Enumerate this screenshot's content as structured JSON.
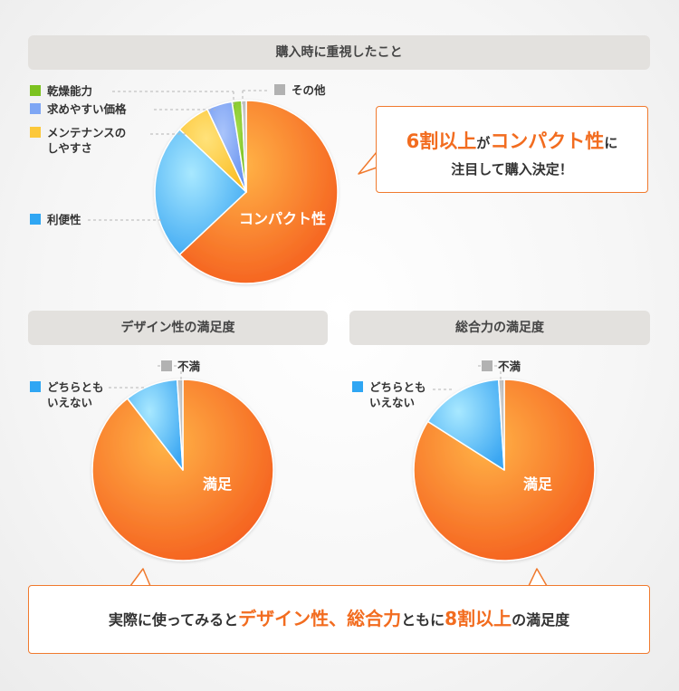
{
  "chart_data": [
    {
      "type": "pie",
      "title": "購入時に重視したこと",
      "slices": [
        {
          "label": "コンパクト性",
          "value": 63,
          "color": "#f7782a"
        },
        {
          "label": "利便性",
          "value": 24,
          "color": "#53b8f5"
        },
        {
          "label": "メンテナンスのしやすさ",
          "value": 6,
          "color": "#fcc83a"
        },
        {
          "label": "求めやすい価格",
          "value": 4.5,
          "color": "#7ea6f4"
        },
        {
          "label": "乾燥能力",
          "value": 1.7,
          "color": "#7cc21f"
        },
        {
          "label": "その他",
          "value": 0.8,
          "color": "#b2b2b2"
        }
      ]
    },
    {
      "type": "pie",
      "title": "デザイン性の満足度",
      "slices": [
        {
          "label": "満足",
          "value": 89.5,
          "color": "#f7782a"
        },
        {
          "label": "どちらとも いえない",
          "value": 9.5,
          "color": "#53b8f5"
        },
        {
          "label": "不満",
          "value": 1,
          "color": "#b2b2b2"
        }
      ]
    },
    {
      "type": "pie",
      "title": "総合力の満足度",
      "slices": [
        {
          "label": "満足",
          "value": 84,
          "color": "#f7782a"
        },
        {
          "label": "どちらとも いえない",
          "value": 15,
          "color": "#53b8f5"
        },
        {
          "label": "不満",
          "value": 1,
          "color": "#b2b2b2"
        }
      ]
    }
  ],
  "legend": {
    "kanso": "乾燥能力",
    "kakaku": "求めやすい価格",
    "maint1": "メンテナンスの",
    "maint2": "しやすさ",
    "ribensei": "利便性",
    "sonota": "その他",
    "dochira1": "どちらとも",
    "dochira2": "いえない",
    "fuman": "不満"
  },
  "pie_labels": {
    "compact": "コンパクト性",
    "manzoku": "満足"
  },
  "callout_top": {
    "big1": "6割以上",
    "mid": "が",
    "big2": "コンパクト性",
    "tail": "に",
    "line2": "注目して購入決定！"
  },
  "callout_bottom": {
    "pre": "実際に使ってみると",
    "big1": "デザイン性、総合力",
    "mid": "ともに",
    "big2": "8割以上",
    "post": "の満足度"
  }
}
